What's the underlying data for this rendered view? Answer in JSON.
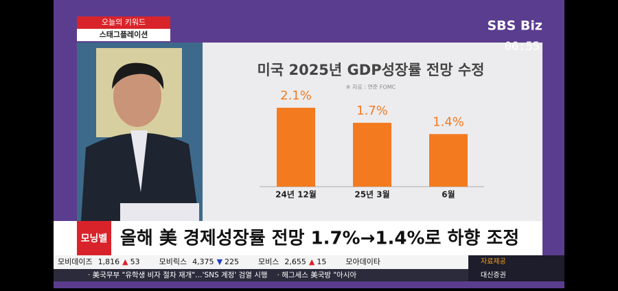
{
  "broadcast": {
    "keyword_label": "오늘의 키워드",
    "keyword": "스태그플레이션",
    "logo": "SBS Biz",
    "time": "06:55",
    "program": "모닝벨",
    "headline": "올해 美 경제성장률 전망 1.7%→1.4%로 하향 조정",
    "stocks": [
      {
        "name": "모비데이즈",
        "price": "1,816",
        "arrow": "▲",
        "change": "53"
      },
      {
        "name": "모비릭스",
        "price": "4,375",
        "arrow": "▼",
        "change": "225"
      },
      {
        "name": "모비스",
        "price": "2,655",
        "arrow": "▲",
        "change": "15"
      },
      {
        "name": "모아데이타"
      }
    ],
    "provider_label": "자료제공",
    "provider": "대신증권",
    "news": [
      "· 美국무부 \"유학생 비자 절차 재개\"…'SNS 계정' 검열 시행",
      "· 헤그세스 美국방 \"아시아"
    ]
  },
  "chart_data": {
    "type": "bar",
    "title": "미국 2025년 GDP성장률 전망 수정",
    "source": "※ 자료 : 연준 FOMC",
    "categories": [
      "24년 12월",
      "25년 3월",
      "6월"
    ],
    "values": [
      2.1,
      1.7,
      1.4
    ],
    "value_labels": [
      "2.1%",
      "1.7%",
      "1.4%"
    ],
    "color": "#f47a20"
  }
}
